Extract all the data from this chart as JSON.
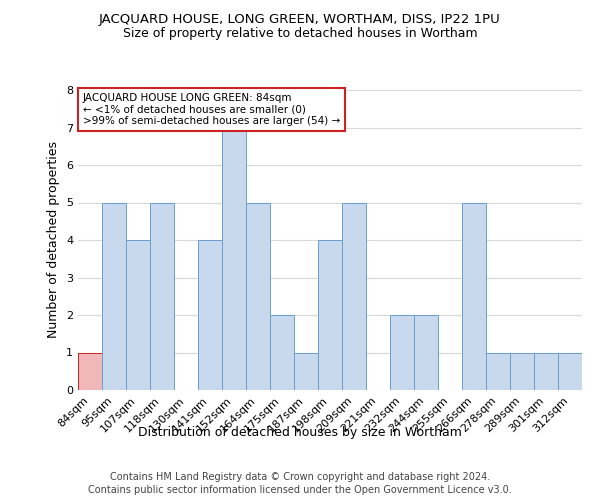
{
  "title": "JACQUARD HOUSE, LONG GREEN, WORTHAM, DISS, IP22 1PU",
  "subtitle": "Size of property relative to detached houses in Wortham",
  "xlabel": "Distribution of detached houses by size in Wortham",
  "ylabel": "Number of detached properties",
  "categories": [
    "84sqm",
    "95sqm",
    "107sqm",
    "118sqm",
    "130sqm",
    "141sqm",
    "152sqm",
    "164sqm",
    "175sqm",
    "187sqm",
    "198sqm",
    "209sqm",
    "221sqm",
    "232sqm",
    "244sqm",
    "255sqm",
    "266sqm",
    "278sqm",
    "289sqm",
    "301sqm",
    "312sqm"
  ],
  "values": [
    1,
    5,
    4,
    5,
    0,
    4,
    7,
    5,
    2,
    1,
    4,
    5,
    0,
    2,
    2,
    0,
    5,
    1,
    1,
    1,
    1
  ],
  "bar_color": "#c8d8ed",
  "bar_edge_color": "#6a9fd0",
  "highlight_index": 0,
  "highlight_bar_color": "#f0b8b8",
  "highlight_bar_edge_color": "#cc2222",
  "ylim": [
    0,
    8
  ],
  "yticks": [
    0,
    1,
    2,
    3,
    4,
    5,
    6,
    7,
    8
  ],
  "annotation_text": "JACQUARD HOUSE LONG GREEN: 84sqm\n← <1% of detached houses are smaller (0)\n>99% of semi-detached houses are larger (54) →",
  "annotation_box_facecolor": "#ffffff",
  "annotation_box_edgecolor": "#cc2222",
  "footer_line1": "Contains HM Land Registry data © Crown copyright and database right 2024.",
  "footer_line2": "Contains public sector information licensed under the Open Government Licence v3.0.",
  "background_color": "#ffffff",
  "axes_background_color": "#ffffff",
  "grid_color": "#d8d8d8",
  "title_fontsize": 9.5,
  "subtitle_fontsize": 9,
  "label_fontsize": 9,
  "tick_fontsize": 8,
  "annotation_fontsize": 7.5,
  "footer_fontsize": 7
}
